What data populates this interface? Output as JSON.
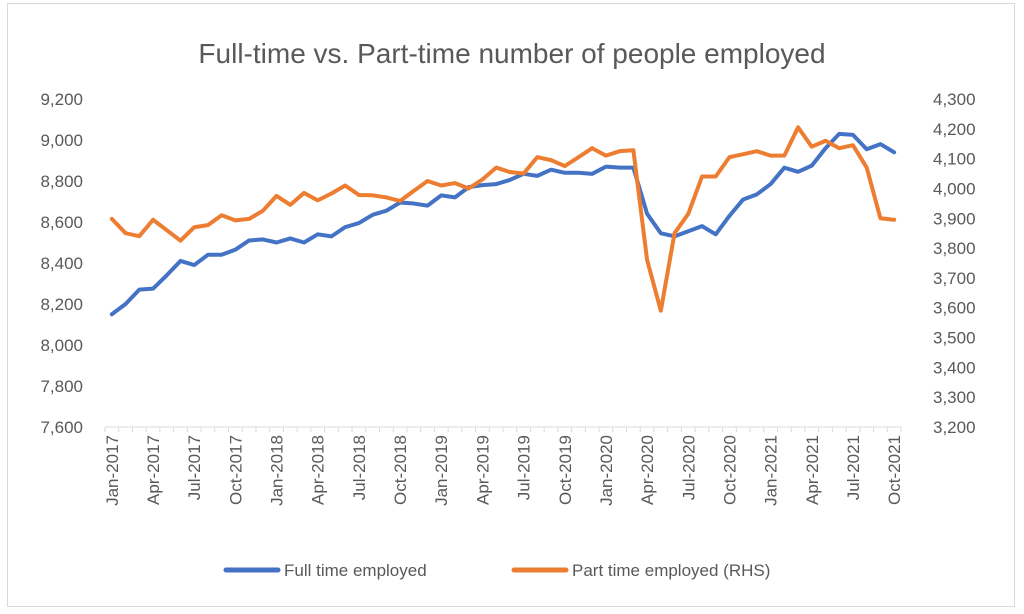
{
  "chart_data": {
    "type": "line",
    "title": "Full-time vs. Part-time number of people employed",
    "xlabel": "",
    "ylabel": "",
    "x_tick_labels": [
      "Jan-2017",
      "Apr-2017",
      "Jul-2017",
      "Oct-2017",
      "Jan-2018",
      "Apr-2018",
      "Jul-2018",
      "Oct-2018",
      "Jan-2019",
      "Apr-2019",
      "Jul-2019",
      "Oct-2019",
      "Jan-2020",
      "Apr-2020",
      "Jul-2020",
      "Oct-2020",
      "Jan-2021",
      "Apr-2021",
      "Jul-2021",
      "Oct-2021"
    ],
    "left_axis": {
      "min": 7600,
      "max": 9200,
      "ticks": [
        "7,600",
        "7,800",
        "8,000",
        "8,200",
        "8,400",
        "8,600",
        "8,800",
        "9,000",
        "9,200"
      ]
    },
    "right_axis": {
      "min": 3200,
      "max": 4300,
      "ticks": [
        "3,200",
        "3,300",
        "3,400",
        "3,500",
        "3,600",
        "3,700",
        "3,800",
        "3,900",
        "4,000",
        "4,100",
        "4,200",
        "4,300"
      ]
    },
    "x": [
      "Jan-2017",
      "Feb-2017",
      "Mar-2017",
      "Apr-2017",
      "May-2017",
      "Jun-2017",
      "Jul-2017",
      "Aug-2017",
      "Sep-2017",
      "Oct-2017",
      "Nov-2017",
      "Dec-2017",
      "Jan-2018",
      "Feb-2018",
      "Mar-2018",
      "Apr-2018",
      "May-2018",
      "Jun-2018",
      "Jul-2018",
      "Aug-2018",
      "Sep-2018",
      "Oct-2018",
      "Nov-2018",
      "Dec-2018",
      "Jan-2019",
      "Feb-2019",
      "Mar-2019",
      "Apr-2019",
      "May-2019",
      "Jun-2019",
      "Jul-2019",
      "Aug-2019",
      "Sep-2019",
      "Oct-2019",
      "Nov-2019",
      "Dec-2019",
      "Jan-2020",
      "Feb-2020",
      "Mar-2020",
      "Apr-2020",
      "May-2020",
      "Jun-2020",
      "Jul-2020",
      "Aug-2020",
      "Sep-2020",
      "Oct-2020",
      "Nov-2020",
      "Dec-2020",
      "Jan-2021",
      "Feb-2021",
      "Mar-2021",
      "Apr-2021",
      "May-2021",
      "Jun-2021",
      "Jul-2021",
      "Aug-2021",
      "Sep-2021",
      "Oct-2021"
    ],
    "series": [
      {
        "name": "Full time employed",
        "axis": "left",
        "color": "#4472C4",
        "values": [
          8150,
          8200,
          8270,
          8275,
          8340,
          8410,
          8390,
          8440,
          8440,
          8465,
          8510,
          8515,
          8500,
          8520,
          8500,
          8540,
          8530,
          8575,
          8595,
          8635,
          8655,
          8695,
          8690,
          8680,
          8730,
          8720,
          8770,
          8780,
          8785,
          8805,
          8835,
          8825,
          8855,
          8840,
          8840,
          8835,
          8870,
          8865,
          8865,
          8640,
          8545,
          8530,
          8555,
          8580,
          8540,
          8630,
          8710,
          8735,
          8785,
          8865,
          8845,
          8875,
          8960,
          9030,
          9025,
          8955,
          8980,
          8940
        ]
      },
      {
        "name": "Part time employed (RHS)",
        "axis": "right",
        "color": "#ED7D31",
        "values": [
          3898,
          3850,
          3840,
          3895,
          3860,
          3825,
          3870,
          3877,
          3910,
          3893,
          3898,
          3925,
          3975,
          3945,
          3985,
          3960,
          3983,
          4010,
          3978,
          3977,
          3970,
          3958,
          3992,
          4025,
          4010,
          4018,
          4000,
          4030,
          4070,
          4055,
          4050,
          4105,
          4095,
          4075,
          4105,
          4135,
          4110,
          4125,
          4128,
          3760,
          3590,
          3850,
          3915,
          4040,
          4040,
          4105,
          4115,
          4125,
          4110,
          4110,
          4205,
          4140,
          4160,
          4135,
          4145,
          4070,
          3900,
          3895
        ]
      }
    ],
    "legend": {
      "placement": "bottom"
    },
    "grid": false
  }
}
